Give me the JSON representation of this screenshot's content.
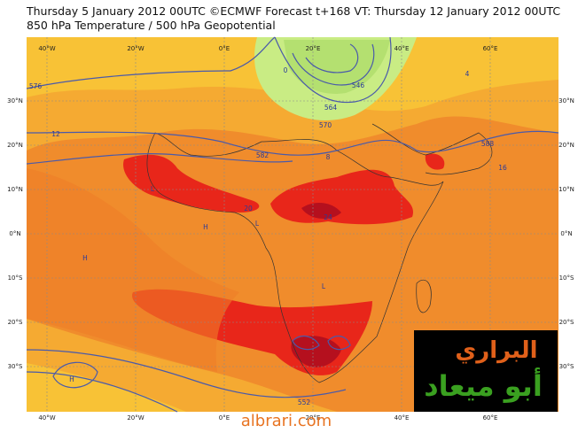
{
  "header": {
    "title": "Thursday 5 January 2012 00UTC ©ECMWF Forecast t+168 VT: Thursday 12 January 2012 00UTC",
    "subtitle": "850 hPa Temperature / 500 hPa Geopotential"
  },
  "axes": {
    "lon_labels": [
      "40°W",
      "20°W",
      "0°E",
      "20°E",
      "40°E",
      "60°E"
    ],
    "lat_labels": [
      "30°N",
      "20°N",
      "10°N",
      "0°N",
      "10°S",
      "20°S",
      "30°S"
    ]
  },
  "contour_labels": [
    "576",
    "582",
    "588",
    "570",
    "564",
    "552",
    "546",
    "12",
    "16",
    "20",
    "24",
    "8",
    "4",
    "0",
    "H",
    "L",
    "H",
    "L",
    "H",
    "L"
  ],
  "logo": {
    "line1": "البراري",
    "line2": "أبو ميعاد"
  },
  "footer": "albrari.com"
}
